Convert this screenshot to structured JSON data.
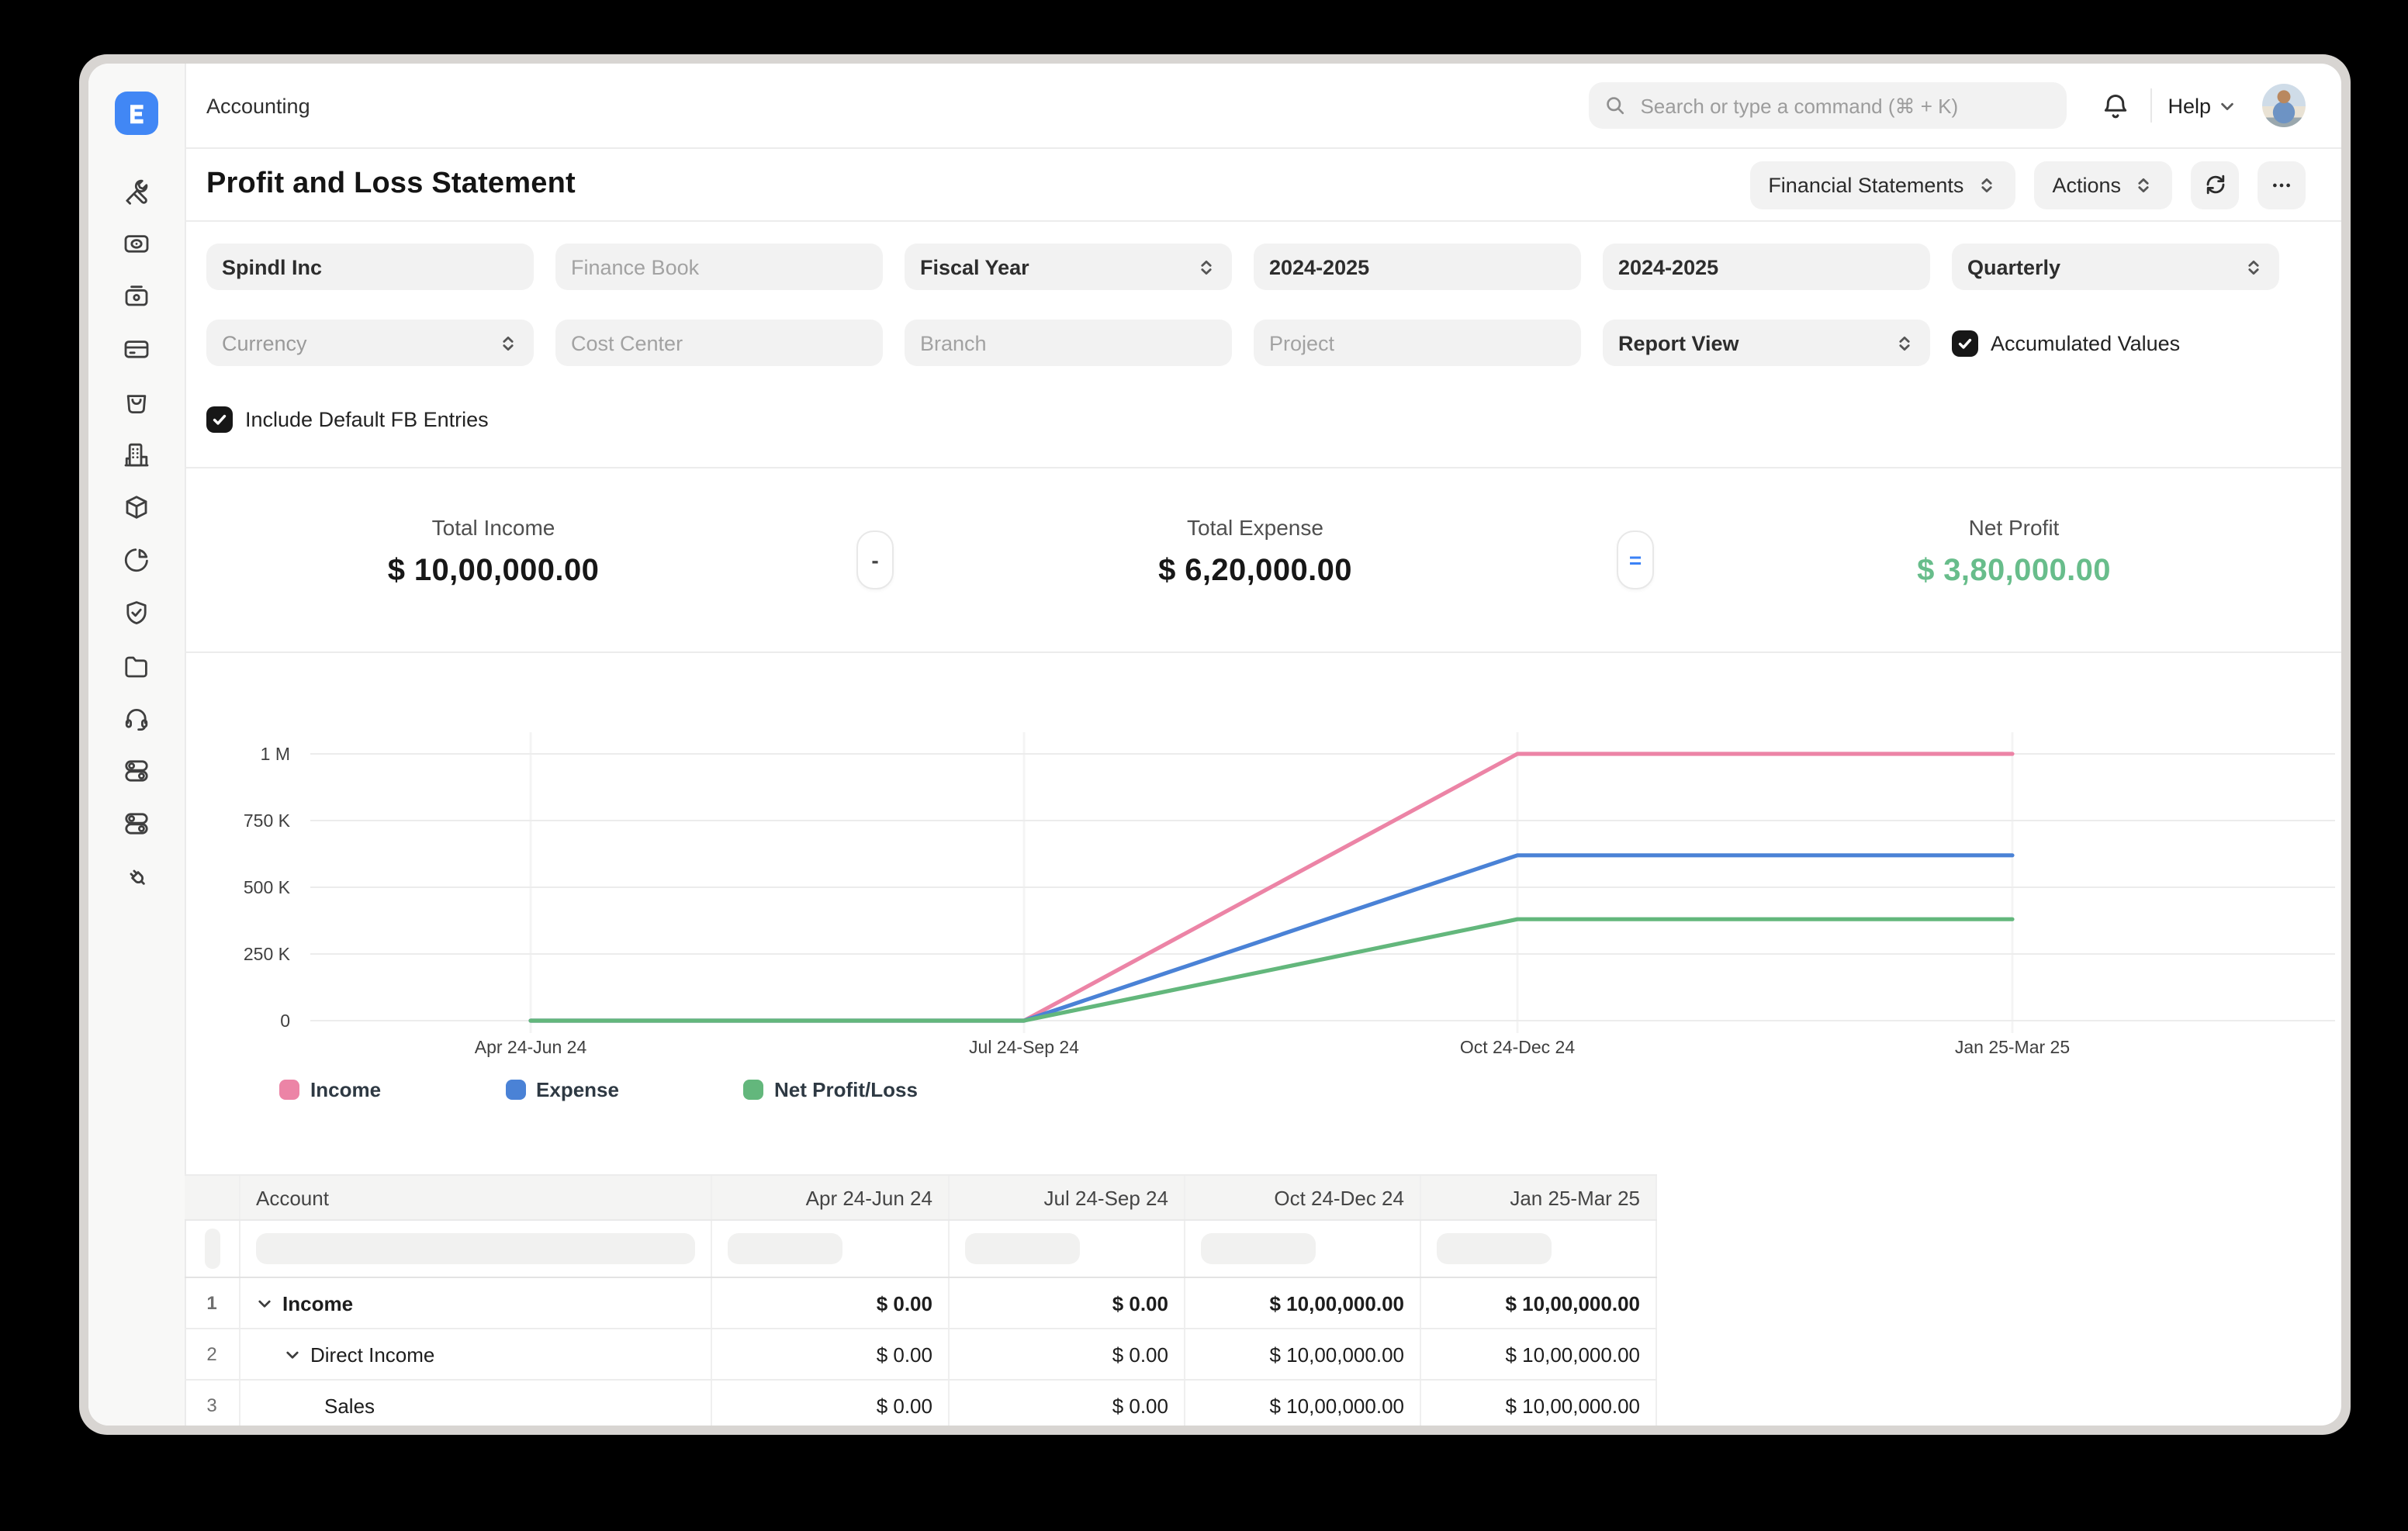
{
  "app": {
    "logo_letter": "E",
    "top_nav": "Accounting",
    "search_placeholder": "Search or type a command (⌘ + K)",
    "help_label": "Help"
  },
  "sidebar": {
    "icons": [
      "tools",
      "cash",
      "toolbox",
      "credit-card",
      "shopping-bag",
      "building",
      "package",
      "pie-chart",
      "shield-check",
      "folder",
      "headset",
      "toggles",
      "toggles",
      "plug"
    ]
  },
  "page": {
    "title": "Profit and Loss Statement"
  },
  "toolbar": {
    "report_group": "Financial Statements",
    "actions": "Actions"
  },
  "filters": {
    "company": "Spindl Inc",
    "finance_book_placeholder": "Finance Book",
    "period_basis": "Fiscal Year",
    "from_year": "2024-2025",
    "to_year": "2024-2025",
    "periodicity": "Quarterly",
    "currency_placeholder": "Currency",
    "cost_center_placeholder": "Cost Center",
    "branch_placeholder": "Branch",
    "project_placeholder": "Project",
    "report_view": "Report View",
    "accumulated_values_label": "Accumulated Values",
    "accumulated_values_checked": true,
    "include_default_fb_label": "Include Default FB Entries",
    "include_default_fb_checked": true
  },
  "summary": {
    "income_label": "Total Income",
    "income_value": "$ 10,00,000.00",
    "minus": "-",
    "expense_label": "Total Expense",
    "expense_value": "$ 6,20,000.00",
    "equals": "=",
    "net_label": "Net Profit",
    "net_value": "$ 3,80,000.00"
  },
  "colors": {
    "accent_blue": "#4187f5",
    "equals_blue": "#3b82f6",
    "net_profit_green": "#68bd8b",
    "income_pink": "#ec84a6",
    "expense_blue": "#4a82d6",
    "net_green": "#63b77c"
  },
  "chart_data": {
    "type": "line",
    "title": "",
    "xlabel": "",
    "ylabel": "",
    "categories": [
      "Apr 24-Jun 24",
      "Jul 24-Sep 24",
      "Oct 24-Dec 24",
      "Jan 25-Mar 25"
    ],
    "series": [
      {
        "name": "Income",
        "color": "#ec84a6",
        "values": [
          0,
          0,
          1000000,
          1000000
        ]
      },
      {
        "name": "Expense",
        "color": "#4a82d6",
        "values": [
          0,
          0,
          620000,
          620000
        ]
      },
      {
        "name": "Net Profit/Loss",
        "color": "#63b77c",
        "values": [
          0,
          0,
          380000,
          380000
        ]
      }
    ],
    "ylim": [
      0,
      1000000
    ],
    "yticks": [
      {
        "value": 1000000,
        "label": "1 M"
      },
      {
        "value": 750000,
        "label": "750 K"
      },
      {
        "value": 500000,
        "label": "500 K"
      },
      {
        "value": 250000,
        "label": "250 K"
      },
      {
        "value": 0,
        "label": "0"
      }
    ],
    "grid": true,
    "legend_position": "bottom"
  },
  "table": {
    "columns": [
      "Account",
      "Apr 24-Jun 24",
      "Jul 24-Sep 24",
      "Oct 24-Dec 24",
      "Jan 25-Mar 25"
    ],
    "rows": [
      {
        "num": "1",
        "account": "Income",
        "indent": 0,
        "chevron": true,
        "bold": true,
        "values": [
          "$ 0.00",
          "$ 0.00",
          "$ 10,00,000.00",
          "$ 10,00,000.00"
        ]
      },
      {
        "num": "2",
        "account": "Direct Income",
        "indent": 1,
        "chevron": true,
        "bold": false,
        "values": [
          "$ 0.00",
          "$ 0.00",
          "$ 10,00,000.00",
          "$ 10,00,000.00"
        ]
      },
      {
        "num": "3",
        "account": "Sales",
        "indent": 2,
        "chevron": false,
        "bold": false,
        "values": [
          "$ 0.00",
          "$ 0.00",
          "$ 10,00,000.00",
          "$ 10,00,000.00"
        ]
      }
    ]
  }
}
